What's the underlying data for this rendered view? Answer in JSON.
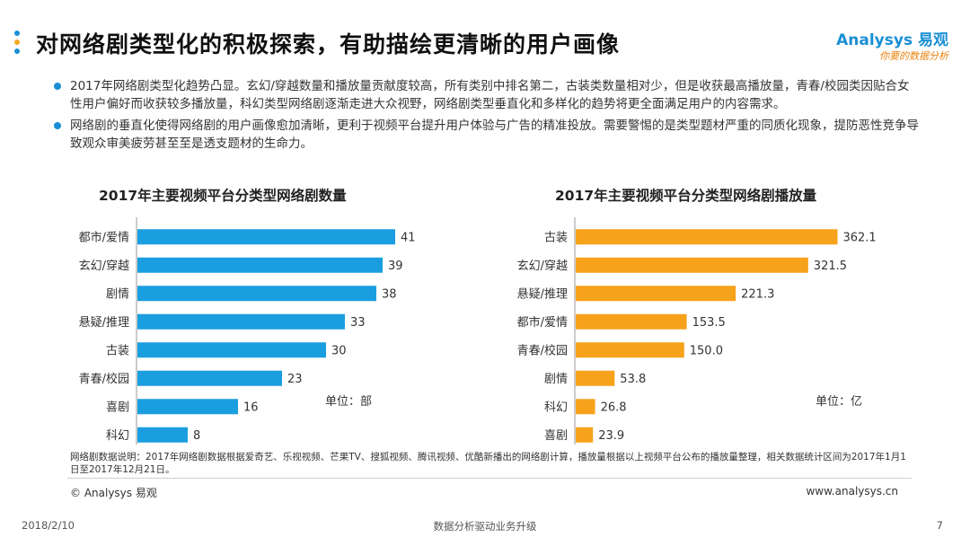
{
  "title": "对网络剧类型化的积极探索，有助描绘更清晰的用户画像",
  "title_dot_colors": [
    "#1a8fd4",
    "#f5a623",
    "#1a8fd4"
  ],
  "logo": {
    "main": "Analysys 易观",
    "sub": "你要的数据分析"
  },
  "bullets": [
    "2017年网络剧类型化趋势凸显。玄幻/穿越数量和播放量贡献度较高，所有类别中排名第二，古装类数量相对少，但是收获最高播放量，青春/校园类因贴合女性用户偏好而收获较多播放量，科幻类型网络剧逐渐走进大众视野，网络剧类型垂直化和多样化的趋势将更全面满足用户的内容需求。",
    "网络剧的垂直化使得网络剧的用户画像愈加清晰，更利于视频平台提升用户体验与广告的精准投放。需要警惕的是类型题材严重的同质化现象，提防恶性竞争导致观众审美疲劳甚至至是透支题材的生命力。"
  ],
  "chart_data": [
    {
      "type": "bar",
      "orientation": "horizontal",
      "title": "2017年主要视频平台分类型网络剧数量",
      "unit_label": "单位：部",
      "categories": [
        "都市/爱情",
        "玄幻/穿越",
        "剧情",
        "悬疑/推理",
        "古装",
        "青春/校园",
        "喜剧",
        "科幻"
      ],
      "values": [
        41,
        39,
        38,
        33,
        30,
        23,
        16,
        8
      ],
      "value_labels": [
        "41",
        "39",
        "38",
        "33",
        "30",
        "23",
        "16",
        "8"
      ],
      "xlim": [
        0,
        45
      ],
      "color": "#1a9ee0",
      "grid": false
    },
    {
      "type": "bar",
      "orientation": "horizontal",
      "title": "2017年主要视频平台分类型网络剧播放量",
      "unit_label": "单位：亿",
      "categories": [
        "古装",
        "玄幻/穿越",
        "悬疑/推理",
        "都市/爱情",
        "青春/校园",
        "剧情",
        "科幻",
        "喜剧"
      ],
      "values": [
        362.1,
        321.5,
        221.3,
        153.5,
        150.0,
        53.8,
        26.8,
        23.9
      ],
      "value_labels": [
        "362.1",
        "321.5",
        "221.3",
        "153.5",
        "150.0",
        "53.8",
        "26.8",
        "23.9"
      ],
      "xlim": [
        0,
        400
      ],
      "color": "#f7a21b",
      "grid": false
    }
  ],
  "source_note": "网络剧数据说明：2017年网络剧数据根据爱奇艺、乐视视频、芒果TV、搜狐视频、腾讯视频、优酷新播出的网络剧计算，播放量根据以上视频平台公布的播放量整理，相关数据统计区间为2017年1月1日至2017年12月21日。",
  "copyright": "© Analysys 易观",
  "website": "www.analysys.cn",
  "footer": {
    "date": "2018/2/10",
    "center": "数据分析驱动业务升级",
    "page": "7"
  }
}
